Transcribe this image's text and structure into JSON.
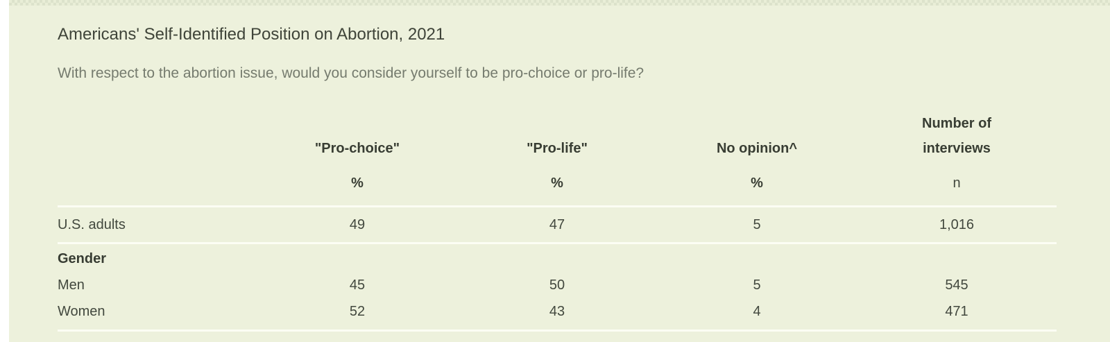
{
  "card": {
    "title": "Americans' Self-Identified Position on Abortion, 2021",
    "subtitle": "With respect to the abortion issue, would you consider yourself to be pro-choice or pro-life?"
  },
  "table": {
    "columns": [
      {
        "title_top": "",
        "title": "\"Pro-choice\"",
        "unit": "%"
      },
      {
        "title_top": "",
        "title": "\"Pro-life\"",
        "unit": "%"
      },
      {
        "title_top": "",
        "title": "No opinion^",
        "unit": "%"
      },
      {
        "title_top": "Number of",
        "title": "interviews",
        "unit": "n"
      }
    ],
    "rows": {
      "us_adults": {
        "label": "U.S. adults",
        "pro_choice": "49",
        "pro_life": "47",
        "no_opinion": "5",
        "n": "1,016"
      },
      "gender_section": {
        "label": "Gender"
      },
      "men": {
        "label": "Men",
        "pro_choice": "45",
        "pro_life": "50",
        "no_opinion": "5",
        "n": "545"
      },
      "women": {
        "label": "Women",
        "pro_choice": "52",
        "pro_life": "43",
        "no_opinion": "4",
        "n": "471"
      }
    }
  },
  "colors": {
    "page_background": "#ffffff",
    "card_background": "#edf1dc",
    "rule": "#fcfdf4",
    "title_text": "#3f4439",
    "subtitle_text": "#757b6e",
    "header_text": "#383d33",
    "body_text": "#42483e"
  },
  "chart_data": {
    "type": "table",
    "title": "Americans' Self-Identified Position on Abortion, 2021",
    "subtitle": "With respect to the abortion issue, would you consider yourself to be pro-choice or pro-life?",
    "columns": [
      "",
      "\"Pro-choice\" (%)",
      "\"Pro-life\" (%)",
      "No opinion^ (%)",
      "Number of interviews (n)"
    ],
    "rows": [
      [
        "U.S. adults",
        49,
        47,
        5,
        1016
      ],
      [
        "Gender (section header)",
        null,
        null,
        null,
        null
      ],
      [
        "Men",
        45,
        50,
        5,
        545
      ],
      [
        "Women",
        52,
        43,
        4,
        471
      ]
    ],
    "layout_hints": {
      "label_column_left_aligned": true,
      "value_columns_centered": true,
      "white_rules_after": [
        "unit row",
        "U.S. adults",
        "Women"
      ]
    }
  }
}
